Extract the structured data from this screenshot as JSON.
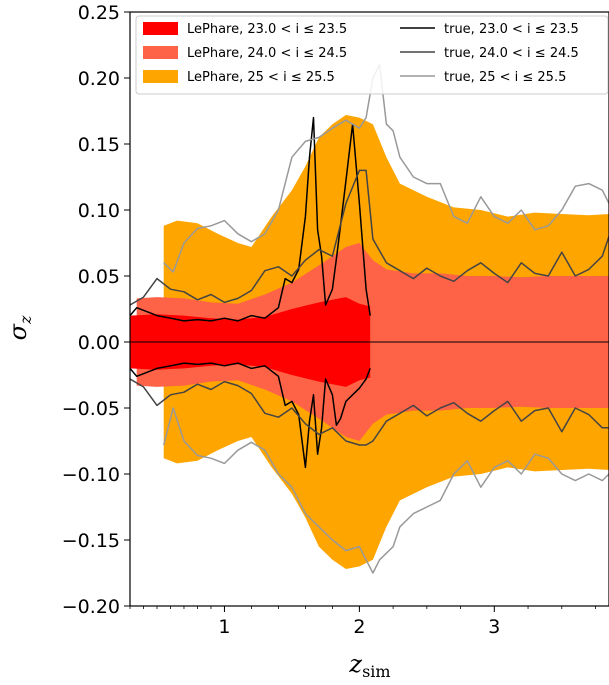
{
  "chart_data": {
    "type": "area",
    "xlabel": "z_sim",
    "ylabel": "σ_z",
    "xlim": [
      0.3,
      3.85
    ],
    "ylim": [
      -0.2,
      0.25
    ],
    "x_ticks": [
      1,
      2,
      3
    ],
    "x_tick_labels": [
      "1",
      "2",
      "3"
    ],
    "y_ticks": [
      -0.2,
      -0.15,
      -0.1,
      -0.05,
      0.0,
      0.05,
      0.1,
      0.15,
      0.2,
      0.25
    ],
    "y_tick_labels": [
      "−0.20",
      "−0.15",
      "−0.10",
      "−0.05",
      "0.00",
      "0.05",
      "0.10",
      "0.15",
      "0.20",
      "0.25"
    ],
    "grid": false,
    "legend_position": "top",
    "bands": [
      {
        "name": "LePhare, 25 < i ≤ 25.5",
        "legend_label": "LePhare, 25 < i ≤ 25.5",
        "color": "#ffa500",
        "x": [
          0.55,
          0.65,
          0.8,
          0.95,
          1.1,
          1.2,
          1.35,
          1.5,
          1.6,
          1.7,
          1.8,
          1.9,
          2.0,
          2.1,
          2.2,
          2.3,
          2.5,
          2.7,
          2.9,
          3.1,
          3.3,
          3.5,
          3.7,
          3.85
        ],
        "upper": [
          0.088,
          0.092,
          0.09,
          0.082,
          0.075,
          0.072,
          0.095,
          0.115,
          0.133,
          0.155,
          0.165,
          0.172,
          0.17,
          0.165,
          0.14,
          0.12,
          0.11,
          0.102,
          0.1,
          0.095,
          0.098,
          0.097,
          0.096,
          0.097
        ],
        "lower": [
          -0.088,
          -0.092,
          -0.09,
          -0.082,
          -0.075,
          -0.072,
          -0.095,
          -0.115,
          -0.133,
          -0.155,
          -0.165,
          -0.172,
          -0.17,
          -0.165,
          -0.14,
          -0.12,
          -0.11,
          -0.102,
          -0.1,
          -0.095,
          -0.098,
          -0.097,
          -0.096,
          -0.097
        ]
      },
      {
        "name": "LePhare, 24.0 < i ≤ 24.5",
        "legend_label": "LePhare, 24.0 < i ≤ 24.5",
        "color": "#ff6347",
        "x": [
          0.35,
          0.5,
          0.7,
          0.9,
          1.1,
          1.3,
          1.5,
          1.7,
          1.9,
          2.0,
          2.1,
          2.2,
          2.4,
          2.6,
          2.8,
          3.0,
          3.2,
          3.4,
          3.6,
          3.85
        ],
        "upper": [
          0.033,
          0.034,
          0.033,
          0.03,
          0.029,
          0.036,
          0.045,
          0.058,
          0.072,
          0.075,
          0.062,
          0.055,
          0.052,
          0.052,
          0.05,
          0.05,
          0.049,
          0.05,
          0.05,
          0.05
        ],
        "lower": [
          -0.033,
          -0.034,
          -0.033,
          -0.03,
          -0.029,
          -0.036,
          -0.045,
          -0.058,
          -0.072,
          -0.075,
          -0.062,
          -0.055,
          -0.052,
          -0.052,
          -0.05,
          -0.05,
          -0.049,
          -0.05,
          -0.05,
          -0.05
        ]
      },
      {
        "name": "LePhare, 23.0 < i ≤ 23.5",
        "legend_label": "LePhare, 23.0 < i ≤ 23.5",
        "color": "#ff0000",
        "x": [
          0.3,
          0.5,
          0.7,
          0.9,
          1.1,
          1.3,
          1.5,
          1.7,
          1.9,
          2.0,
          2.08
        ],
        "upper": [
          0.02,
          0.021,
          0.02,
          0.018,
          0.017,
          0.019,
          0.025,
          0.03,
          0.034,
          0.029,
          0.027
        ],
        "lower": [
          -0.02,
          -0.021,
          -0.02,
          -0.018,
          -0.017,
          -0.019,
          -0.025,
          -0.03,
          -0.034,
          -0.029,
          -0.027
        ]
      }
    ],
    "series": [
      {
        "name": "true, 23.0 < i ≤ 23.5",
        "legend_label": "true, 23.0 < i ≤ 23.5",
        "color": "#000000",
        "x": [
          0.3,
          0.35,
          0.4,
          0.5,
          0.6,
          0.7,
          0.8,
          0.9,
          1.0,
          1.1,
          1.2,
          1.3,
          1.4,
          1.45,
          1.5,
          1.55,
          1.6,
          1.63,
          1.66,
          1.69,
          1.72,
          1.75,
          1.8,
          1.83,
          1.86,
          1.9,
          1.95,
          2.0,
          2.05,
          2.08
        ],
        "upper": [
          0.02,
          0.026,
          0.024,
          0.02,
          0.018,
          0.016,
          0.017,
          0.016,
          0.018,
          0.016,
          0.02,
          0.018,
          0.026,
          0.048,
          0.045,
          0.055,
          0.095,
          0.14,
          0.17,
          0.085,
          0.065,
          0.028,
          0.04,
          0.063,
          0.088,
          0.122,
          0.165,
          0.105,
          0.04,
          0.02
        ],
        "lower": [
          -0.02,
          -0.026,
          -0.024,
          -0.02,
          -0.018,
          -0.016,
          -0.017,
          -0.016,
          -0.018,
          -0.016,
          -0.02,
          -0.018,
          -0.026,
          -0.048,
          -0.045,
          -0.055,
          -0.095,
          -0.06,
          -0.04,
          -0.085,
          -0.065,
          -0.028,
          -0.04,
          -0.063,
          -0.058,
          -0.045,
          -0.04,
          -0.035,
          -0.028,
          -0.02
        ]
      },
      {
        "name": "true, 24.0 < i ≤ 24.5",
        "legend_label": "true, 24.0 < i ≤ 24.5",
        "color": "#444444",
        "x": [
          0.3,
          0.4,
          0.5,
          0.6,
          0.7,
          0.8,
          0.9,
          1.0,
          1.1,
          1.2,
          1.3,
          1.4,
          1.5,
          1.6,
          1.7,
          1.8,
          1.9,
          2.0,
          2.05,
          2.1,
          2.2,
          2.3,
          2.4,
          2.5,
          2.6,
          2.7,
          2.8,
          2.9,
          3.0,
          3.1,
          3.2,
          3.3,
          3.4,
          3.5,
          3.6,
          3.7,
          3.8,
          3.85
        ],
        "upper": [
          0.028,
          0.034,
          0.048,
          0.04,
          0.038,
          0.032,
          0.036,
          0.03,
          0.033,
          0.039,
          0.054,
          0.057,
          0.05,
          0.062,
          0.07,
          0.065,
          0.105,
          0.13,
          0.13,
          0.078,
          0.06,
          0.054,
          0.048,
          0.056,
          0.05,
          0.046,
          0.054,
          0.06,
          0.052,
          0.045,
          0.06,
          0.052,
          0.05,
          0.068,
          0.05,
          0.055,
          0.065,
          0.08
        ],
        "lower": [
          -0.028,
          -0.034,
          -0.048,
          -0.04,
          -0.038,
          -0.032,
          -0.036,
          -0.03,
          -0.033,
          -0.039,
          -0.054,
          -0.057,
          -0.05,
          -0.062,
          -0.07,
          -0.065,
          -0.075,
          -0.078,
          -0.078,
          -0.075,
          -0.06,
          -0.054,
          -0.048,
          -0.056,
          -0.05,
          -0.046,
          -0.054,
          -0.06,
          -0.052,
          -0.045,
          -0.06,
          -0.052,
          -0.05,
          -0.068,
          -0.05,
          -0.055,
          -0.065,
          -0.065
        ]
      },
      {
        "name": "true, 25 < i ≤ 25.5",
        "legend_label": "true, 25 < i ≤ 25.5",
        "color": "#999999",
        "x": [
          0.55,
          0.62,
          0.7,
          0.8,
          0.9,
          1.0,
          1.1,
          1.2,
          1.3,
          1.4,
          1.5,
          1.6,
          1.7,
          1.8,
          1.9,
          2.0,
          2.05,
          2.1,
          2.15,
          2.2,
          2.25,
          2.3,
          2.4,
          2.5,
          2.6,
          2.7,
          2.8,
          2.9,
          3.0,
          3.1,
          3.2,
          3.3,
          3.4,
          3.5,
          3.6,
          3.7,
          3.8,
          3.85
        ],
        "upper": [
          0.06,
          0.053,
          0.075,
          0.086,
          0.088,
          0.092,
          0.082,
          0.076,
          0.082,
          0.1,
          0.14,
          0.152,
          0.155,
          0.162,
          0.168,
          0.162,
          0.17,
          0.2,
          0.21,
          0.165,
          0.16,
          0.14,
          0.125,
          0.12,
          0.12,
          0.095,
          0.09,
          0.11,
          0.095,
          0.09,
          0.1,
          0.085,
          0.088,
          0.1,
          0.118,
          0.12,
          0.115,
          0.105
        ],
        "lower": [
          -0.078,
          -0.05,
          -0.075,
          -0.086,
          -0.088,
          -0.092,
          -0.082,
          -0.076,
          -0.082,
          -0.1,
          -0.11,
          -0.13,
          -0.14,
          -0.15,
          -0.158,
          -0.155,
          -0.165,
          -0.175,
          -0.165,
          -0.16,
          -0.155,
          -0.14,
          -0.13,
          -0.125,
          -0.12,
          -0.1,
          -0.09,
          -0.11,
          -0.095,
          -0.09,
          -0.1,
          -0.085,
          -0.088,
          -0.1,
          -0.105,
          -0.1,
          -0.105,
          -0.1
        ]
      }
    ]
  }
}
